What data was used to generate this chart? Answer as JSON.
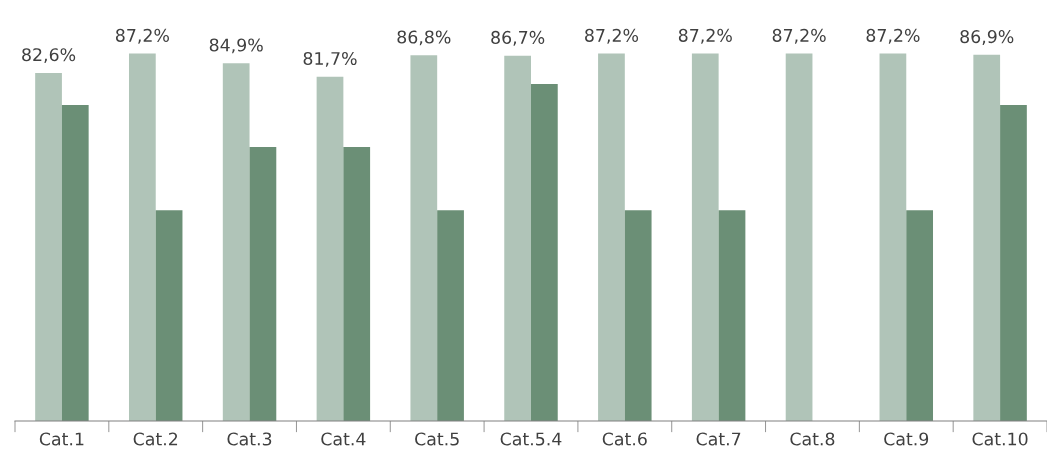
{
  "chart_data": {
    "type": "bar",
    "categories": [
      "Cat.1",
      "Cat.2",
      "Cat.3",
      "Cat.4",
      "Cat.5",
      "Cat.5.4",
      "Cat.6",
      "Cat.7",
      "Cat.8",
      "Cat.9",
      "Cat.10"
    ],
    "series": [
      {
        "color": "#b0c4b8",
        "values": [
          82.6,
          87.2,
          84.9,
          81.7,
          86.8,
          86.7,
          87.2,
          87.2,
          87.2,
          87.2,
          86.9
        ],
        "value_labels": [
          "82,6%",
          "87,2%",
          "84,9%",
          "81,7%",
          "86,8%",
          "86,7%",
          "87,2%",
          "87,2%",
          "87,2%",
          "87,2%",
          "86,9%"
        ]
      },
      {
        "color": "#6b8f76",
        "values": [
          75,
          50,
          65,
          65,
          50,
          80,
          50,
          50,
          null,
          50,
          75
        ]
      }
    ],
    "grid": false,
    "legend": false
  }
}
